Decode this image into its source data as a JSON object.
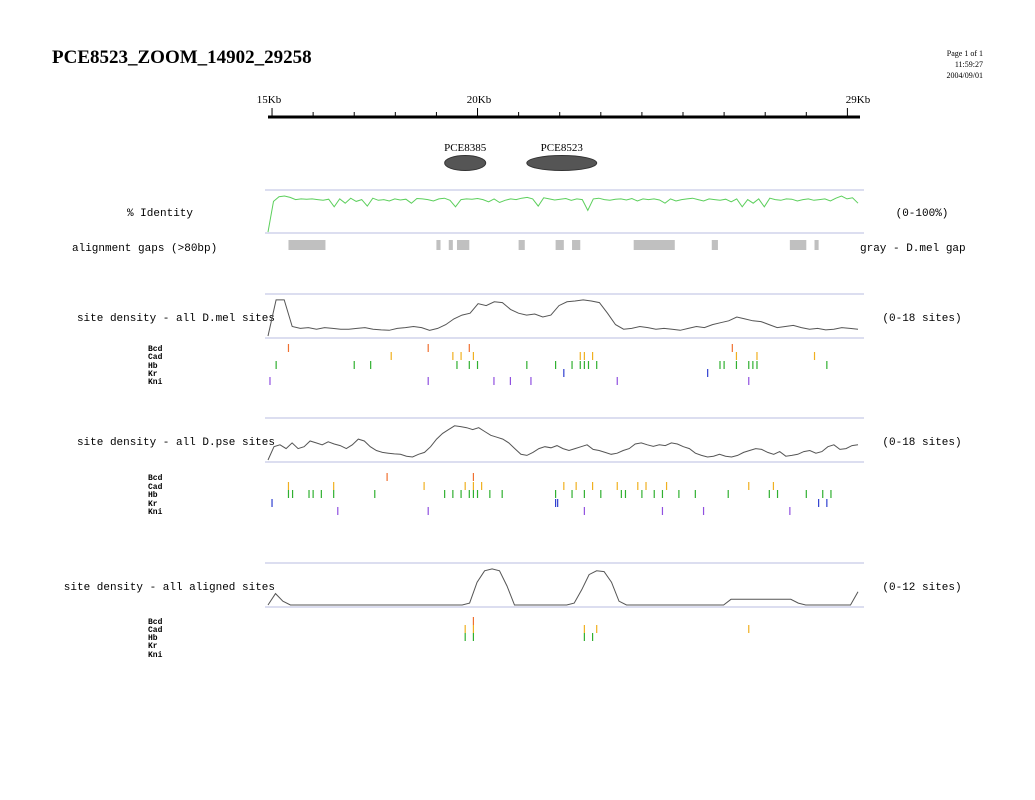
{
  "header": {
    "title": "PCE8523_ZOOM_14902_29258",
    "page": "Page 1 of 1",
    "time": "11:59:27",
    "date": "2004/09/01"
  },
  "ruler": {
    "start_label": "15Kb",
    "mid_label": "20Kb",
    "end_label": "29Kb",
    "range_kb": [
      14.902,
      29.258
    ]
  },
  "elements": [
    {
      "name": "PCE8385",
      "start_kb": 19.2,
      "end_kb": 20.2
    },
    {
      "name": "PCE8523",
      "start_kb": 21.2,
      "end_kb": 22.9
    }
  ],
  "identity": {
    "label": "% Identity",
    "range_label": "(0-100%)",
    "color": "#5ccf5c",
    "values": [
      0,
      85,
      98,
      100,
      96,
      90,
      92,
      91,
      92,
      90,
      88,
      91,
      70,
      92,
      80,
      94,
      85,
      90,
      72,
      94,
      88,
      90,
      86,
      92,
      89,
      91,
      80,
      93,
      92,
      90,
      86,
      92,
      94,
      88,
      70,
      90,
      92,
      91,
      93,
      90,
      84,
      92,
      82,
      88,
      92,
      90,
      94,
      96,
      92,
      72,
      95,
      92,
      89,
      91,
      93,
      88,
      92,
      90,
      60,
      92,
      94,
      90,
      88,
      91,
      92,
      89,
      93,
      86,
      92,
      90,
      92,
      89,
      80,
      92,
      86,
      90,
      92,
      94,
      90,
      86,
      92,
      90,
      88,
      91,
      84,
      92,
      70,
      90,
      80,
      92,
      70,
      94,
      90,
      88,
      92,
      91,
      86,
      90,
      92,
      88,
      90,
      92,
      86,
      94,
      100,
      92,
      95,
      80
    ]
  },
  "gaps": {
    "label": "alignment gaps (>80bp)",
    "note": "gray - D.mel gap",
    "color": "#c0c0c0",
    "segments_kb": [
      [
        15.4,
        16.3
      ],
      [
        19.0,
        19.1
      ],
      [
        19.3,
        19.4
      ],
      [
        19.5,
        19.8
      ],
      [
        21.0,
        21.15
      ],
      [
        21.9,
        22.1
      ],
      [
        22.3,
        22.5
      ],
      [
        23.8,
        24.8
      ],
      [
        25.7,
        25.85
      ],
      [
        27.6,
        28.0
      ],
      [
        28.2,
        28.3
      ]
    ]
  },
  "tracks": [
    {
      "label": "site density - all D.mel sites",
      "range_label": "(0-18 sites)",
      "density": [
        0,
        95,
        95,
        25,
        20,
        22,
        18,
        22,
        20,
        18,
        18,
        20,
        22,
        18,
        16,
        15,
        20,
        22,
        25,
        22,
        15,
        20,
        30,
        45,
        55,
        60,
        85,
        80,
        90,
        88,
        70,
        60,
        55,
        58,
        50,
        55,
        80,
        90,
        92,
        95,
        92,
        88,
        60,
        30,
        18,
        20,
        25,
        22,
        18,
        20,
        18,
        15,
        20,
        25,
        22,
        30,
        35,
        40,
        50,
        45,
        40,
        38,
        30,
        22,
        25,
        28,
        22,
        18,
        20,
        16,
        18,
        22,
        20,
        18
      ],
      "factors": [
        {
          "name": "Bcd",
          "color": "#f07030",
          "sites_kb": [
            15.4,
            18.8,
            19.8,
            26.2
          ]
        },
        {
          "name": "Cad",
          "color": "#f0b020",
          "sites_kb": [
            17.9,
            19.4,
            19.6,
            19.9,
            22.5,
            22.6,
            22.8,
            26.3,
            26.8,
            28.2
          ]
        },
        {
          "name": "Hb",
          "color": "#30b030",
          "sites_kb": [
            15.1,
            17.0,
            17.4,
            19.5,
            19.8,
            20.0,
            21.2,
            21.9,
            22.3,
            22.5,
            22.6,
            22.7,
            22.9,
            25.9,
            26.0,
            26.3,
            26.6,
            26.7,
            26.8,
            28.5
          ]
        },
        {
          "name": "Kr",
          "color": "#3040d0",
          "sites_kb": [
            22.1,
            25.6
          ]
        },
        {
          "name": "Kni",
          "color": "#9050e0",
          "sites_kb": [
            14.95,
            18.8,
            20.4,
            20.8,
            21.3,
            23.4,
            26.6
          ]
        }
      ]
    },
    {
      "label": "site density - all D.pse sites",
      "range_label": "(0-18 sites)",
      "density": [
        0,
        35,
        40,
        30,
        45,
        30,
        35,
        50,
        45,
        40,
        48,
        42,
        38,
        30,
        40,
        55,
        50,
        35,
        25,
        20,
        18,
        16,
        15,
        10,
        8,
        15,
        20,
        35,
        55,
        70,
        80,
        90,
        88,
        85,
        80,
        85,
        75,
        65,
        60,
        55,
        45,
        30,
        15,
        12,
        20,
        30,
        35,
        32,
        38,
        30,
        25,
        30,
        35,
        40,
        28,
        25,
        20,
        15,
        18,
        25,
        30,
        42,
        45,
        40,
        36,
        40,
        38,
        45,
        42,
        35,
        30,
        18,
        12,
        8,
        10,
        15,
        10,
        8,
        12,
        20,
        25,
        30,
        28,
        20,
        15,
        22,
        10,
        12,
        15,
        22,
        25,
        18,
        22,
        35,
        40,
        28,
        30,
        38,
        40
      ],
      "factors": [
        {
          "name": "Bcd",
          "color": "#f07030",
          "sites_kb": [
            17.8,
            19.9
          ]
        },
        {
          "name": "Cad",
          "color": "#f0b020",
          "sites_kb": [
            15.4,
            16.5,
            18.7,
            19.7,
            19.9,
            20.1,
            22.1,
            22.4,
            22.8,
            23.4,
            23.9,
            24.1,
            24.6,
            26.6,
            27.2
          ]
        },
        {
          "name": "Hb",
          "color": "#30b030",
          "sites_kb": [
            15.4,
            15.5,
            15.9,
            16.0,
            16.2,
            16.5,
            17.5,
            19.2,
            19.4,
            19.6,
            19.8,
            19.9,
            20.0,
            20.3,
            20.6,
            21.9,
            22.3,
            22.6,
            23.0,
            23.5,
            23.6,
            24.0,
            24.3,
            24.5,
            24.9,
            25.3,
            26.1,
            27.1,
            27.3,
            28.0,
            28.4,
            28.6
          ]
        },
        {
          "name": "Kr",
          "color": "#3040d0",
          "sites_kb": [
            15.0,
            21.9,
            21.95,
            28.3,
            28.5
          ]
        },
        {
          "name": "Kni",
          "color": "#9050e0",
          "sites_kb": [
            16.6,
            18.8,
            22.6,
            24.5,
            25.5,
            27.6
          ]
        }
      ]
    },
    {
      "label": "site density - all aligned sites",
      "range_label": "(0-12 sites)",
      "density": [
        0,
        30,
        10,
        0,
        0,
        0,
        0,
        0,
        0,
        0,
        0,
        0,
        0,
        0,
        0,
        0,
        0,
        0,
        0,
        0,
        0,
        0,
        0,
        0,
        0,
        0,
        0,
        5,
        60,
        90,
        95,
        90,
        50,
        0,
        0,
        0,
        0,
        0,
        0,
        0,
        0,
        5,
        40,
        80,
        90,
        88,
        60,
        10,
        0,
        0,
        0,
        0,
        0,
        0,
        0,
        0,
        0,
        0,
        0,
        0,
        0,
        0,
        15,
        15,
        15,
        15,
        15,
        15,
        15,
        15,
        15,
        5,
        0,
        0,
        0,
        0,
        0,
        0,
        0,
        35
      ],
      "factors": [
        {
          "name": "Bcd",
          "color": "#f07030",
          "sites_kb": [
            19.9
          ]
        },
        {
          "name": "Cad",
          "color": "#f0b020",
          "sites_kb": [
            19.7,
            19.9,
            22.6,
            22.9,
            26.6
          ]
        },
        {
          "name": "Hb",
          "color": "#30b030",
          "sites_kb": [
            19.7,
            19.9,
            22.6,
            22.8
          ]
        },
        {
          "name": "Kr",
          "color": "#3040d0",
          "sites_kb": []
        },
        {
          "name": "Kni",
          "color": "#9050e0",
          "sites_kb": []
        }
      ]
    }
  ]
}
